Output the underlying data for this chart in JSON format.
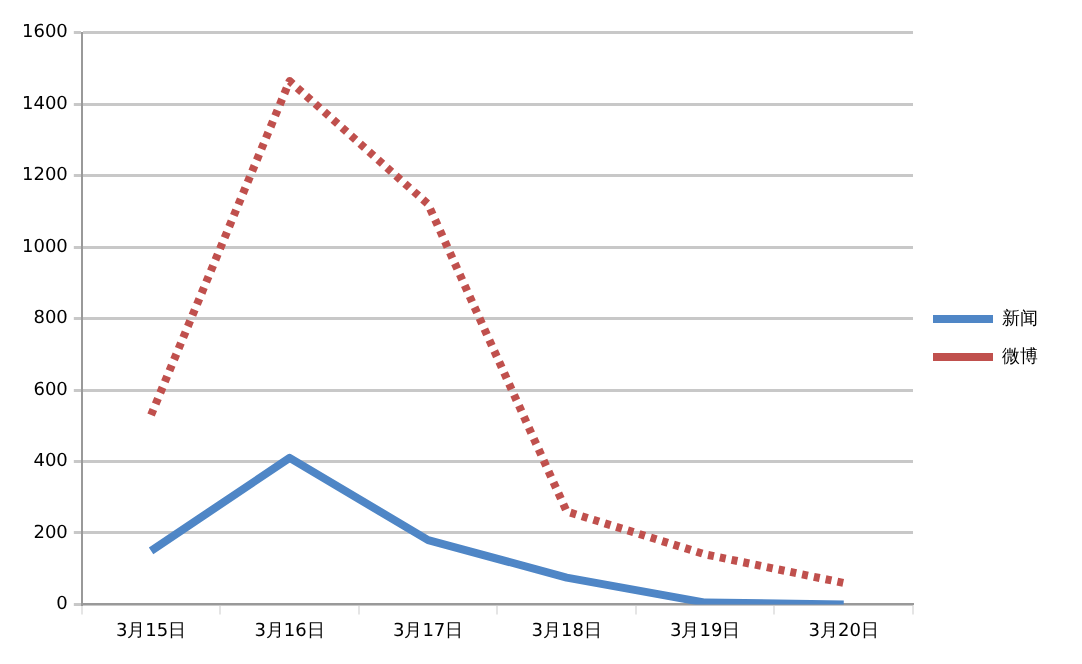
{
  "chart_data": {
    "type": "line",
    "categories": [
      "3月15日",
      "3月16日",
      "3月17日",
      "3月18日",
      "3月19日",
      "3月20日"
    ],
    "series": [
      {
        "name": "新闻",
        "color": "#4f86c6",
        "values": [
          150,
          410,
          180,
          75,
          5,
          0
        ],
        "line_style": "solid"
      },
      {
        "name": "微博",
        "color": "#c0504d",
        "values": [
          530,
          1465,
          1120,
          260,
          140,
          60
        ],
        "line_style": "dotted"
      }
    ],
    "ylim": [
      0,
      1600
    ],
    "yticks": [
      0,
      200,
      400,
      600,
      800,
      1000,
      1200,
      1400,
      1600
    ],
    "grid": "y",
    "legend": "right",
    "marker": "none"
  }
}
